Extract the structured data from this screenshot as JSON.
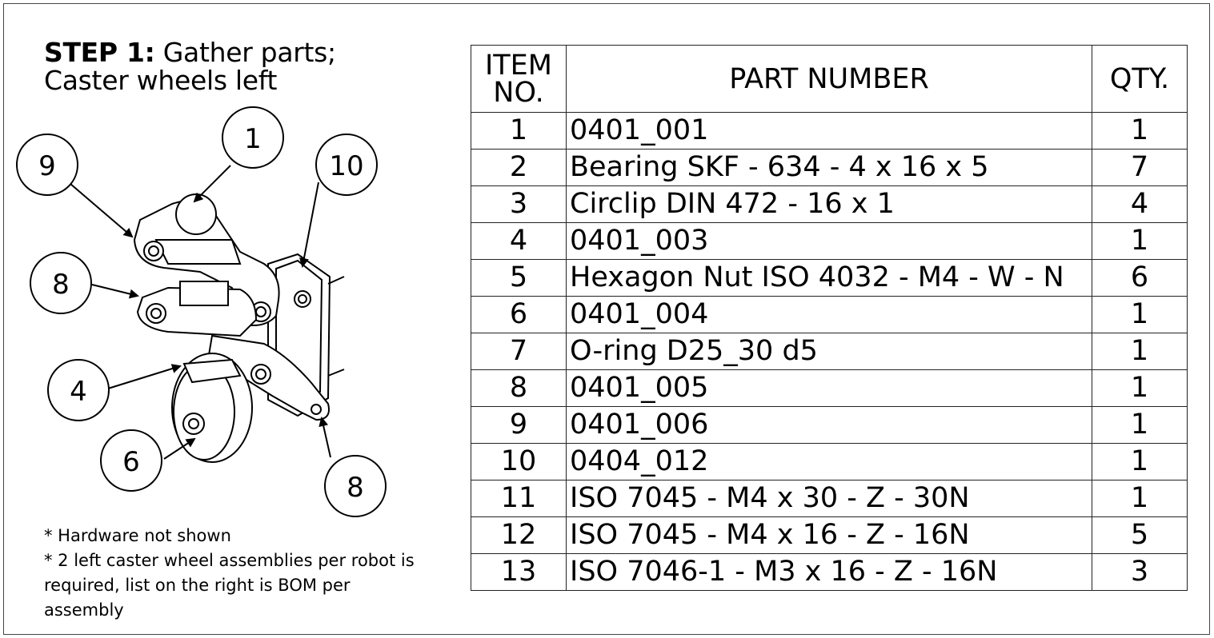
{
  "step": {
    "label": "STEP 1:",
    "title_line1": "Gather parts;",
    "title_line2": "Caster wheels left"
  },
  "notes": [
    "* Hardware not shown",
    "* 2 left caster wheel assemblies per robot is required, list on the right is BOM per assembly"
  ],
  "balloons": [
    "1",
    "9",
    "10",
    "8",
    "4",
    "6",
    "8"
  ],
  "table": {
    "headers": {
      "item": [
        "ITEM",
        "NO."
      ],
      "part": "PART NUMBER",
      "qty": "QTY."
    },
    "rows": [
      {
        "item": "1",
        "part": "0401_001",
        "qty": "1"
      },
      {
        "item": "2",
        "part": "Bearing SKF - 634 - 4 x 16 x 5",
        "qty": "7"
      },
      {
        "item": "3",
        "part": "Circlip DIN 472 - 16 x 1",
        "qty": "4"
      },
      {
        "item": "4",
        "part": "0401_003",
        "qty": "1"
      },
      {
        "item": "5",
        "part": "Hexagon Nut ISO 4032 - M4 - W - N",
        "qty": "6"
      },
      {
        "item": "6",
        "part": "0401_004",
        "qty": "1"
      },
      {
        "item": "7",
        "part": "O-ring D25_30 d5",
        "qty": "1"
      },
      {
        "item": "8",
        "part": "0401_005",
        "qty": "1"
      },
      {
        "item": "9",
        "part": "0401_006",
        "qty": "1"
      },
      {
        "item": "10",
        "part": "0404_012",
        "qty": "1"
      },
      {
        "item": "11",
        "part": "ISO 7045 - M4 x 30 - Z - 30N",
        "qty": "1"
      },
      {
        "item": "12",
        "part": "ISO 7045 - M4 x 16 - Z - 16N",
        "qty": "5"
      },
      {
        "item": "13",
        "part": "ISO 7046-1 - M3 x 16 - Z - 16N",
        "qty": "3"
      }
    ]
  }
}
